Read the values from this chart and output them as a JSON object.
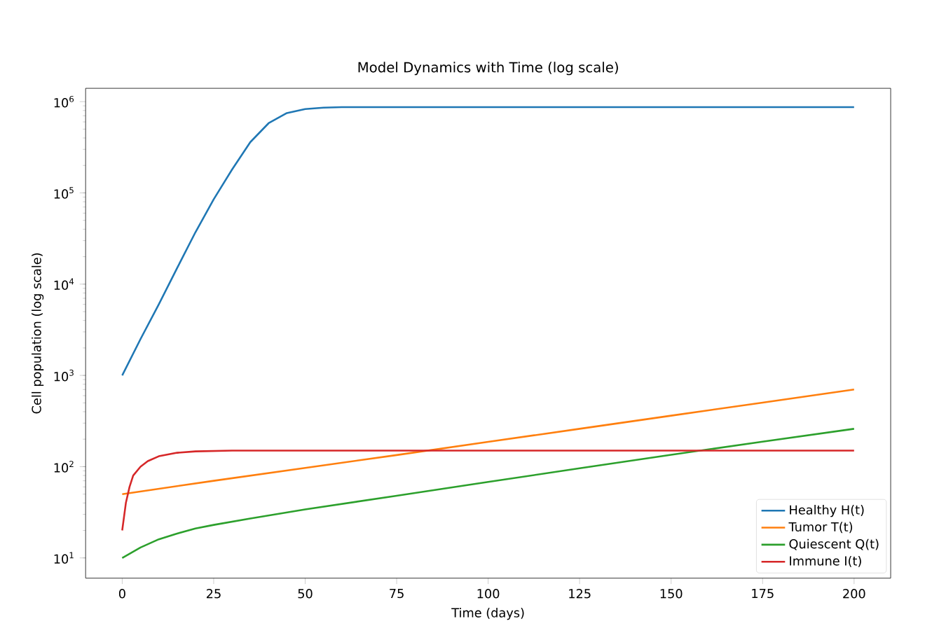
{
  "chart_data": {
    "type": "line",
    "title": "Model Dynamics with Time (log scale)",
    "xlabel": "Time (days)",
    "ylabel": "Cell population (log scale)",
    "log": "y",
    "legend": "bottom right",
    "grid": false,
    "xlim": [
      -10,
      210
    ],
    "xticks": [
      0,
      25,
      50,
      75,
      100,
      125,
      150,
      175,
      200
    ],
    "ylim": [
      6,
      1400000
    ],
    "yticks": [
      {
        "value": 10,
        "label": "10$^{1}$"
      },
      {
        "value": 100,
        "label": "10$^{2}$"
      },
      {
        "value": 1000,
        "label": "10$^{3}$"
      },
      {
        "value": 10000,
        "label": "10$^{4}$"
      },
      {
        "value": 100000,
        "label": "10$^{5}$"
      },
      {
        "value": 1000000,
        "label": "10$^{6}$"
      }
    ],
    "series": [
      {
        "name": "Healthy H(t)",
        "color": "#1f77b4",
        "x": [
          0,
          5,
          10,
          15,
          20,
          25,
          30,
          35,
          40,
          45,
          50,
          55,
          60,
          100,
          150,
          200
        ],
        "values": [
          1000,
          2500,
          6000,
          15000,
          37000,
          85000,
          180000,
          360000,
          580000,
          750000,
          830000,
          860000,
          870000,
          870000,
          870000,
          870000
        ]
      },
      {
        "name": "Tumor T(t)",
        "color": "#ff7f0e",
        "x": [
          0,
          25,
          50,
          75,
          100,
          125,
          150,
          175,
          200
        ],
        "values": [
          50,
          70,
          97,
          134,
          187,
          260,
          362,
          503,
          700
        ]
      },
      {
        "name": "Quiescent Q(t)",
        "color": "#2ca02c",
        "x": [
          0,
          5,
          10,
          15,
          20,
          25,
          35,
          50,
          75,
          100,
          125,
          150,
          175,
          200
        ],
        "values": [
          10,
          13,
          16,
          18.5,
          21,
          23,
          27,
          34,
          48,
          68,
          96,
          135,
          188,
          260
        ]
      },
      {
        "name": "Immune I(t)",
        "color": "#d62728",
        "x": [
          0,
          1,
          2,
          3,
          5,
          7,
          10,
          15,
          20,
          30,
          200
        ],
        "values": [
          20,
          40,
          60,
          80,
          100,
          115,
          130,
          142,
          147,
          150,
          150
        ]
      }
    ]
  }
}
